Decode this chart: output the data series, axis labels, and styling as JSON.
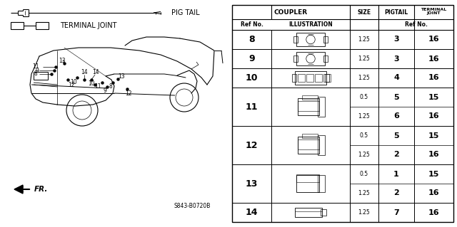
{
  "bg_color": "#ffffff",
  "pig_tail_label": "PIG TAIL",
  "terminal_joint_label": "TERMINAL JOINT",
  "fr_label": "FR.",
  "part_code": "S843-B0720B",
  "table_rows": [
    {
      "ref": "8",
      "size": "1.25",
      "pigtail": "3",
      "terminal": "16",
      "subrows": 1
    },
    {
      "ref": "9",
      "size": "1.25",
      "pigtail": "3",
      "terminal": "16",
      "subrows": 1
    },
    {
      "ref": "10",
      "size": "1.25",
      "pigtail": "4",
      "terminal": "16",
      "subrows": 1
    },
    {
      "ref": "11",
      "size1": "0.5",
      "pigtail1": "5",
      "terminal1": "15",
      "size2": "1.25",
      "pigtail2": "6",
      "terminal2": "16",
      "subrows": 2
    },
    {
      "ref": "12",
      "size1": "0.5",
      "pigtail1": "5",
      "terminal1": "15",
      "size2": "1.25",
      "pigtail2": "2",
      "terminal2": "16",
      "subrows": 2
    },
    {
      "ref": "13",
      "size1": "0.5",
      "pigtail1": "1",
      "terminal1": "15",
      "size2": "1.25",
      "pigtail2": "2",
      "terminal2": "16",
      "subrows": 2
    },
    {
      "ref": "14",
      "size": "1.25",
      "pigtail": "7",
      "terminal": "16",
      "subrows": 1
    }
  ]
}
